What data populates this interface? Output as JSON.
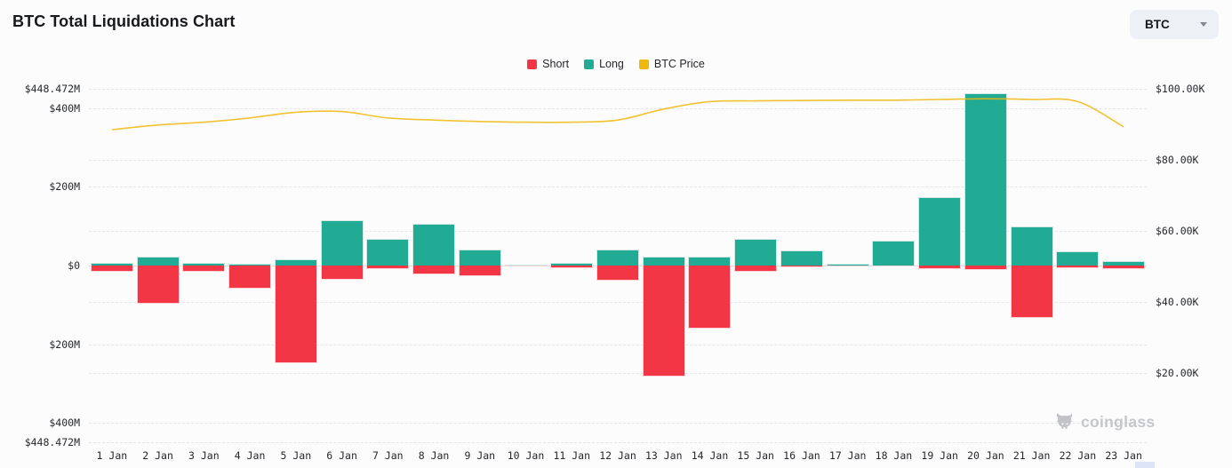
{
  "page": {
    "title": "BTC Total Liquidations Chart"
  },
  "controls": {
    "symbol_select": {
      "value": "BTC"
    }
  },
  "legend": [
    {
      "label": "Short",
      "color": "#f23645"
    },
    {
      "label": "Long",
      "color": "#22ab94"
    },
    {
      "label": "BTC Price",
      "color": "#eeb80d"
    }
  ],
  "watermark": {
    "text": "coinglass"
  },
  "chart_data": {
    "type": "bar",
    "subtype": "diverging-bars-with-line-overlay",
    "categories": [
      "1 Jan",
      "2 Jan",
      "3 Jan",
      "4 Jan",
      "5 Jan",
      "6 Jan",
      "7 Jan",
      "8 Jan",
      "9 Jan",
      "10 Jan",
      "11 Jan",
      "12 Jan",
      "13 Jan",
      "14 Jan",
      "15 Jan",
      "16 Jan",
      "17 Jan",
      "18 Jan",
      "19 Jan",
      "20 Jan",
      "21 Jan",
      "22 Jan",
      "23 Jan"
    ],
    "series": [
      {
        "name": "Short",
        "type": "bar",
        "direction": "below-zero",
        "color": "#f23645",
        "unit": "USD millions",
        "values": [
          16,
          96,
          15,
          58,
          248,
          35,
          9,
          23,
          27,
          2,
          7,
          39,
          281,
          161,
          16,
          5,
          2,
          3,
          10,
          11,
          133,
          7,
          10
        ]
      },
      {
        "name": "Long",
        "type": "bar",
        "direction": "above-zero",
        "color": "#22ab94",
        "unit": "USD millions",
        "values": [
          7,
          23,
          6,
          5,
          15,
          115,
          68,
          107,
          41,
          2,
          6,
          41,
          23,
          23,
          68,
          39,
          4,
          64,
          174,
          437,
          99,
          35,
          11
        ]
      },
      {
        "name": "BTC Price",
        "type": "line",
        "color": "#eeb80d",
        "unit": "USD thousands",
        "values": [
          88.5,
          89.8,
          90.6,
          91.8,
          93.4,
          93.6,
          91.8,
          91.2,
          90.8,
          90.6,
          90.6,
          91.2,
          94.3,
          96.4,
          96.6,
          96.7,
          96.8,
          96.8,
          97.0,
          97.2,
          97.0,
          96.4,
          89.3
        ]
      }
    ],
    "left_axis": {
      "title": "Liquidation value",
      "ticks": [
        {
          "label": "$448.472M",
          "value": 448.472
        },
        {
          "label": "$400M",
          "value": 400
        },
        {
          "label": "$200M",
          "value": 200
        },
        {
          "label": "$0",
          "value": 0
        },
        {
          "label": "$200M",
          "value": -200
        },
        {
          "label": "$400M",
          "value": -400
        },
        {
          "label": "$448.472M",
          "value": -448.472
        }
      ],
      "range": [
        -448.472,
        448.472
      ]
    },
    "right_axis": {
      "title": "BTC price",
      "ticks": [
        {
          "label": "$100.00K",
          "value": 100
        },
        {
          "label": "$80.00K",
          "value": 80
        },
        {
          "label": "$60.00K",
          "value": 60
        },
        {
          "label": "$40.00K",
          "value": 40
        },
        {
          "label": "$20.00K",
          "value": 20
        }
      ]
    },
    "grid": "dashed-horizontal",
    "legend_position": "top-center"
  }
}
